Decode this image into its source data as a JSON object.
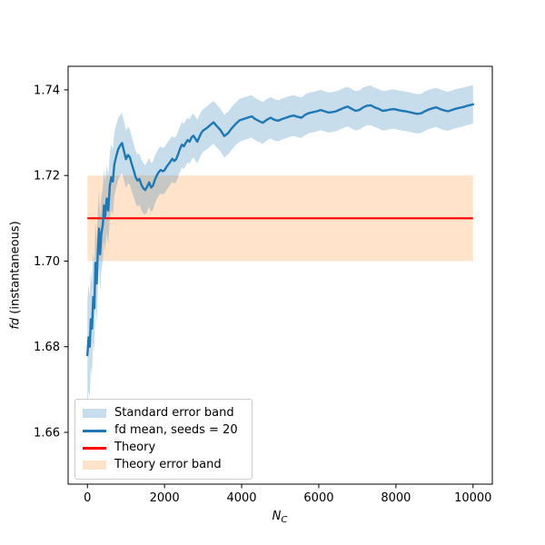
{
  "chart_data": {
    "type": "line",
    "title": "",
    "xlabel": "N_C",
    "xlabel_main": "N",
    "xlabel_sub": "C",
    "ylabel": "fd (instantaneous)",
    "ylabel_italic": "fd",
    "ylabel_rest": " (instantaneous)",
    "xlim": [
      -500,
      10500
    ],
    "ylim": [
      1.6479,
      1.7455
    ],
    "grid": false,
    "xticks": [
      0,
      2000,
      4000,
      6000,
      8000,
      10000
    ],
    "x_tick_labels": [
      "0",
      "2000",
      "4000",
      "6000",
      "8000",
      "10000"
    ],
    "yticks": [
      1.66,
      1.68,
      1.7,
      1.72,
      1.74
    ],
    "y_tick_labels": [
      "1.66",
      "1.68",
      "1.70",
      "1.72",
      "1.74"
    ],
    "theory": {
      "label": "Theory",
      "value": 1.71,
      "band_label": "Theory error band",
      "band": [
        1.7,
        1.72
      ],
      "x_range": [
        0,
        10000
      ],
      "line_color": "#ff0000",
      "band_color": "#ff7f0e",
      "band_alpha": 0.22
    },
    "mean_series": {
      "name": "fd mean, seeds = 20",
      "color": "#1f77b4",
      "points": [
        [
          0,
          1.678
        ],
        [
          30,
          1.6822
        ],
        [
          60,
          1.68
        ],
        [
          90,
          1.6864
        ],
        [
          120,
          1.6842
        ],
        [
          150,
          1.6916
        ],
        [
          180,
          1.689
        ],
        [
          210,
          1.6996
        ],
        [
          240,
          1.6948
        ],
        [
          270,
          1.7022
        ],
        [
          300,
          1.7076
        ],
        [
          330,
          1.7016
        ],
        [
          360,
          1.7062
        ],
        [
          400,
          1.7086
        ],
        [
          430,
          1.713
        ],
        [
          460,
          1.7105
        ],
        [
          500,
          1.7146
        ],
        [
          540,
          1.7118
        ],
        [
          580,
          1.7176
        ],
        [
          620,
          1.7196
        ],
        [
          660,
          1.7186
        ],
        [
          700,
          1.7226
        ],
        [
          750,
          1.7246
        ],
        [
          800,
          1.7262
        ],
        [
          850,
          1.727
        ],
        [
          900,
          1.7276
        ],
        [
          950,
          1.7256
        ],
        [
          1000,
          1.7238
        ],
        [
          1050,
          1.7248
        ],
        [
          1100,
          1.7243
        ],
        [
          1150,
          1.7226
        ],
        [
          1200,
          1.7212
        ],
        [
          1250,
          1.7196
        ],
        [
          1300,
          1.7188
        ],
        [
          1350,
          1.7192
        ],
        [
          1400,
          1.7178
        ],
        [
          1450,
          1.717
        ],
        [
          1500,
          1.7166
        ],
        [
          1550,
          1.7174
        ],
        [
          1600,
          1.7184
        ],
        [
          1650,
          1.7172
        ],
        [
          1700,
          1.7176
        ],
        [
          1750,
          1.719
        ],
        [
          1800,
          1.72
        ],
        [
          1850,
          1.7208
        ],
        [
          1900,
          1.7213
        ],
        [
          1950,
          1.721
        ],
        [
          2000,
          1.7212
        ],
        [
          2050,
          1.722
        ],
        [
          2100,
          1.7226
        ],
        [
          2150,
          1.7232
        ],
        [
          2200,
          1.7239
        ],
        [
          2250,
          1.7234
        ],
        [
          2300,
          1.7238
        ],
        [
          2350,
          1.7249
        ],
        [
          2400,
          1.7262
        ],
        [
          2450,
          1.7272
        ],
        [
          2500,
          1.7268
        ],
        [
          2550,
          1.7276
        ],
        [
          2600,
          1.7283
        ],
        [
          2650,
          1.7279
        ],
        [
          2700,
          1.7289
        ],
        [
          2750,
          1.7293
        ],
        [
          2800,
          1.7286
        ],
        [
          2850,
          1.7279
        ],
        [
          2900,
          1.7289
        ],
        [
          2950,
          1.7299
        ],
        [
          3000,
          1.7305
        ],
        [
          3100,
          1.7311
        ],
        [
          3200,
          1.7319
        ],
        [
          3270,
          1.7324
        ],
        [
          3350,
          1.7316
        ],
        [
          3450,
          1.7306
        ],
        [
          3550,
          1.7292
        ],
        [
          3650,
          1.7299
        ],
        [
          3750,
          1.7311
        ],
        [
          3850,
          1.7321
        ],
        [
          3950,
          1.7329
        ],
        [
          4050,
          1.7332
        ],
        [
          4150,
          1.7335
        ],
        [
          4260,
          1.7338
        ],
        [
          4350,
          1.7332
        ],
        [
          4450,
          1.7327
        ],
        [
          4550,
          1.7323
        ],
        [
          4650,
          1.733
        ],
        [
          4750,
          1.7335
        ],
        [
          4850,
          1.733
        ],
        [
          4950,
          1.7328
        ],
        [
          5050,
          1.7332
        ],
        [
          5150,
          1.7335
        ],
        [
          5250,
          1.7338
        ],
        [
          5350,
          1.734
        ],
        [
          5450,
          1.7337
        ],
        [
          5550,
          1.7335
        ],
        [
          5650,
          1.7342
        ],
        [
          5750,
          1.7346
        ],
        [
          5850,
          1.7348
        ],
        [
          5950,
          1.735
        ],
        [
          6050,
          1.7353
        ],
        [
          6150,
          1.735
        ],
        [
          6250,
          1.7347
        ],
        [
          6350,
          1.7348
        ],
        [
          6450,
          1.735
        ],
        [
          6550,
          1.7354
        ],
        [
          6650,
          1.7358
        ],
        [
          6750,
          1.7361
        ],
        [
          6850,
          1.7356
        ],
        [
          6950,
          1.7351
        ],
        [
          7050,
          1.7353
        ],
        [
          7150,
          1.7359
        ],
        [
          7250,
          1.7363
        ],
        [
          7350,
          1.7364
        ],
        [
          7450,
          1.7359
        ],
        [
          7550,
          1.7356
        ],
        [
          7650,
          1.7351
        ],
        [
          7750,
          1.7352
        ],
        [
          7850,
          1.7354
        ],
        [
          7950,
          1.7355
        ],
        [
          8050,
          1.7353
        ],
        [
          8150,
          1.7351
        ],
        [
          8250,
          1.735
        ],
        [
          8350,
          1.7348
        ],
        [
          8450,
          1.7346
        ],
        [
          8550,
          1.7344
        ],
        [
          8650,
          1.7345
        ],
        [
          8750,
          1.735
        ],
        [
          8850,
          1.7354
        ],
        [
          8950,
          1.7357
        ],
        [
          9050,
          1.7359
        ],
        [
          9150,
          1.7355
        ],
        [
          9250,
          1.7352
        ],
        [
          9350,
          1.735
        ],
        [
          9450,
          1.7353
        ],
        [
          9550,
          1.7356
        ],
        [
          9650,
          1.7358
        ],
        [
          9750,
          1.736
        ],
        [
          9850,
          1.7363
        ],
        [
          10000,
          1.7366
        ]
      ]
    },
    "error_band": {
      "name": "Standard error band",
      "color": "#1f77b4",
      "alpha": 0.25,
      "half_width_points": [
        [
          0,
          0.013
        ],
        [
          100,
          0.011
        ],
        [
          200,
          0.01
        ],
        [
          300,
          0.009
        ],
        [
          500,
          0.008
        ],
        [
          700,
          0.0075
        ],
        [
          900,
          0.007
        ],
        [
          1200,
          0.0062
        ],
        [
          1500,
          0.0058
        ],
        [
          2000,
          0.0054
        ],
        [
          2500,
          0.0053
        ],
        [
          3000,
          0.005
        ],
        [
          4000,
          0.005
        ],
        [
          5000,
          0.0048
        ],
        [
          6000,
          0.0047
        ],
        [
          7000,
          0.0046
        ],
        [
          8000,
          0.0046
        ],
        [
          9000,
          0.0046
        ],
        [
          10000,
          0.0045
        ]
      ]
    },
    "legend": {
      "position": "lower left",
      "border_color": "#cccccc",
      "entries": [
        {
          "label": "Standard error band",
          "swatch": "patch",
          "color": "#1f77b4",
          "alpha": 0.25
        },
        {
          "label": "fd mean, seeds = 20",
          "swatch": "line",
          "color": "#1f77b4",
          "alpha": 1
        },
        {
          "label": "Theory",
          "swatch": "line",
          "color": "#ff0000",
          "alpha": 1
        },
        {
          "label": "Theory error band",
          "swatch": "patch",
          "color": "#ff7f0e",
          "alpha": 0.22
        }
      ]
    }
  }
}
